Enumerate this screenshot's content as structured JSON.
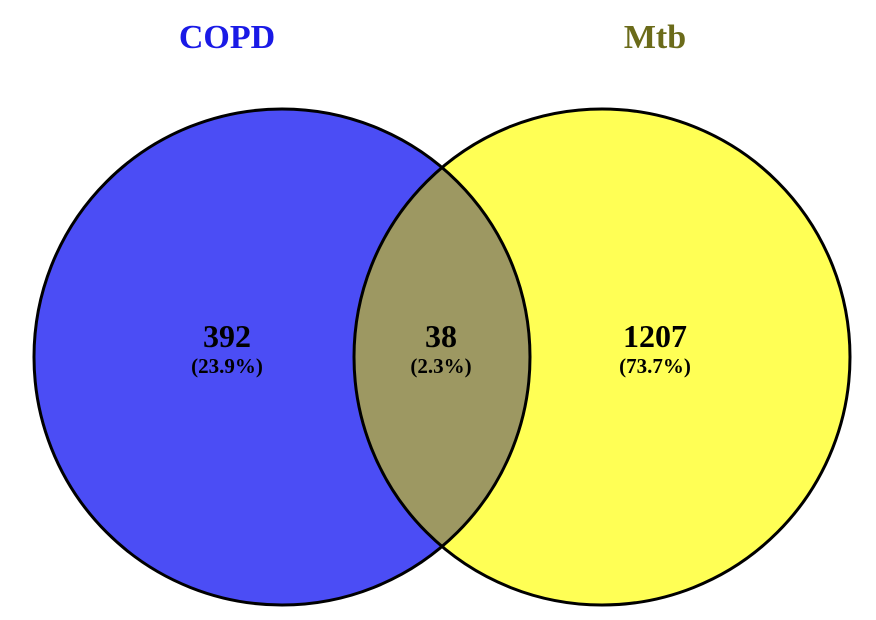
{
  "venn": {
    "sets": [
      {
        "name": "COPD",
        "color": "#4b4df5",
        "title_color": "#1a1ae6"
      },
      {
        "name": "Mtb",
        "color": "#ffff55",
        "title_color": "#6b6b1a"
      }
    ],
    "overlap_color": "#9d9862",
    "outline_color": "#000000",
    "regions": {
      "copd_only": {
        "count": "392",
        "percent": "(23.9%)"
      },
      "both": {
        "count": "38",
        "percent": "(2.3%)"
      },
      "mtb_only": {
        "count": "1207",
        "percent": "(73.7%)"
      }
    }
  }
}
